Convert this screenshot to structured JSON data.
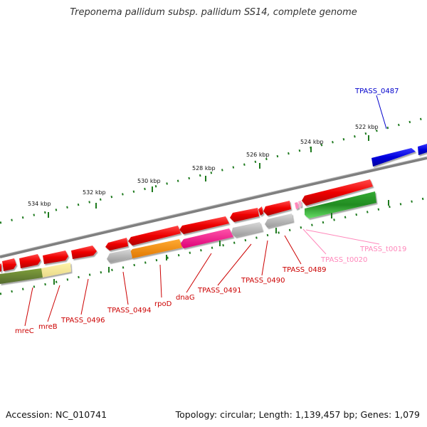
{
  "title": "Treponema pallidum subsp. pallidum SS14, complete genome",
  "footer": {
    "accession": "Accession: NC_010741",
    "summary": "Topology: circular; Length: 1,139,457 bp; Genes: 1,079"
  },
  "colors": {
    "ticks": "#1e7a1e",
    "backbone": "#7f7f7f",
    "red_gene": "#ee0000",
    "blue_gene": "#0000dd",
    "green_gene": "#22bb22",
    "olive_gene": "#6b8e23",
    "pale_yellow": "#f0e68c",
    "orange": "#ff8c00",
    "magenta": "#ff1493",
    "grey": "#b5b5b5",
    "label_red": "#cc0000",
    "label_blue": "#0000cc",
    "label_pink": "#ff88bb"
  },
  "scale_labels": [
    "534 kbp",
    "532 kbp",
    "530 kbp",
    "528 kbp",
    "526 kbp",
    "524 kbp",
    "522 kbp"
  ],
  "gene_labels": {
    "mreC": "mreC",
    "mreB": "mreB",
    "TPASS_0496": "TPASS_0496",
    "TPASS_0494": "TPASS_0494",
    "rpoD": "rpoD",
    "dnaG": "dnaG",
    "TPASS_0491": "TPASS_0491",
    "TPASS_0490": "TPASS_0490",
    "TPASS_0489": "TPASS_0489",
    "TPASS_t0020": "TPASS_t0020",
    "TPASS_t0019": "TPASS_t0019",
    "TPASS_0487": "TPASS_0487"
  }
}
